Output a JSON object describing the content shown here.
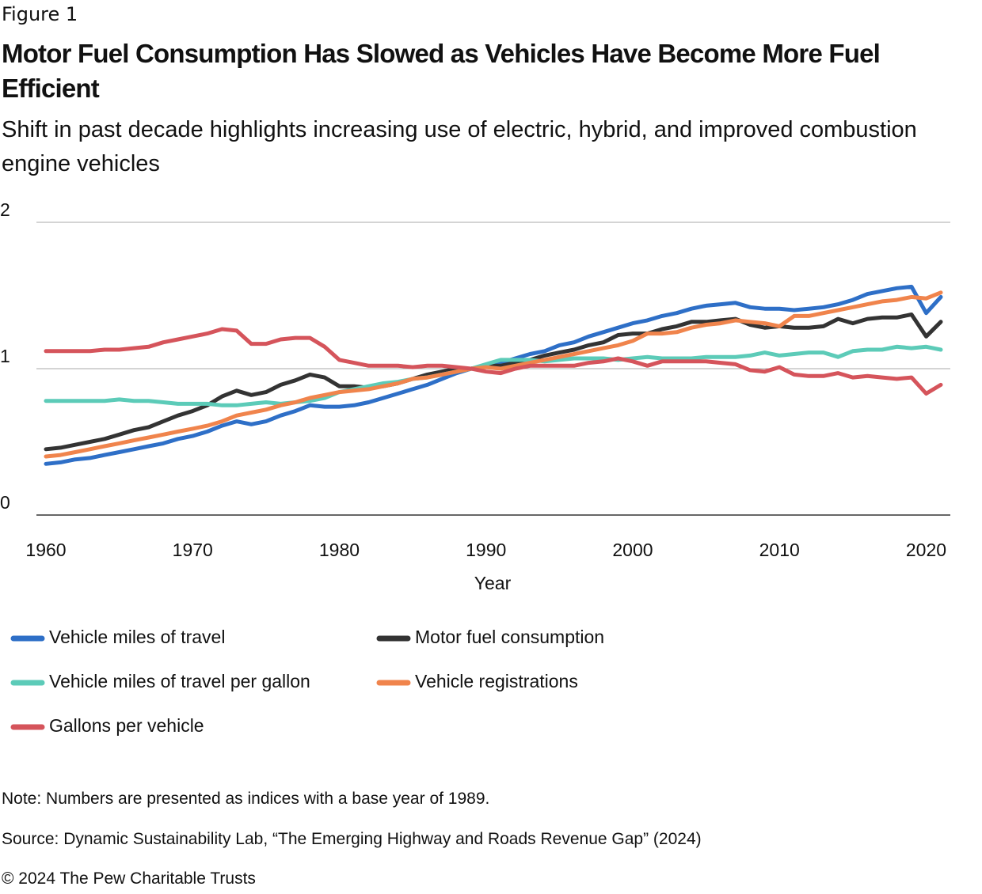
{
  "chart_data": {
    "type": "line",
    "figure_label": "Figure 1",
    "title": "Motor Fuel Consumption Has Slowed as Vehicles Have Become More Fuel Efficient",
    "subtitle": "Shift in past decade highlights increasing use of electric, hybrid, and improved combustion engine vehicles",
    "x_label": "Year",
    "x": [
      1960,
      1961,
      1962,
      1963,
      1964,
      1965,
      1966,
      1967,
      1968,
      1969,
      1970,
      1971,
      1972,
      1973,
      1974,
      1975,
      1976,
      1977,
      1978,
      1979,
      1980,
      1981,
      1982,
      1983,
      1984,
      1985,
      1986,
      1987,
      1988,
      1989,
      1990,
      1991,
      1992,
      1993,
      1994,
      1995,
      1996,
      1997,
      1998,
      1999,
      2000,
      2001,
      2002,
      2003,
      2004,
      2005,
      2006,
      2007,
      2008,
      2009,
      2010,
      2011,
      2012,
      2013,
      2014,
      2015,
      2016,
      2017,
      2018,
      2019,
      2020,
      2021
    ],
    "xlim": [
      1960,
      2021
    ],
    "xticks": [
      1960,
      1970,
      1980,
      1990,
      2000,
      2010,
      2020
    ],
    "ylim": [
      0,
      2
    ],
    "yticks": [
      0,
      1,
      2
    ],
    "grid": true,
    "series": [
      {
        "name": "Vehicle miles of travel",
        "color": "#2e6fc7",
        "values": [
          0.35,
          0.36,
          0.38,
          0.39,
          0.41,
          0.43,
          0.45,
          0.47,
          0.49,
          0.52,
          0.54,
          0.57,
          0.61,
          0.64,
          0.62,
          0.64,
          0.68,
          0.71,
          0.75,
          0.74,
          0.74,
          0.75,
          0.77,
          0.8,
          0.83,
          0.86,
          0.89,
          0.93,
          0.97,
          1.0,
          1.02,
          1.04,
          1.07,
          1.1,
          1.12,
          1.16,
          1.18,
          1.22,
          1.25,
          1.28,
          1.31,
          1.33,
          1.36,
          1.38,
          1.41,
          1.43,
          1.44,
          1.45,
          1.42,
          1.41,
          1.41,
          1.4,
          1.41,
          1.42,
          1.44,
          1.47,
          1.51,
          1.53,
          1.55,
          1.56,
          1.38,
          1.49
        ]
      },
      {
        "name": "Motor fuel consumption",
        "color": "#333333",
        "values": [
          0.45,
          0.46,
          0.48,
          0.5,
          0.52,
          0.55,
          0.58,
          0.6,
          0.64,
          0.68,
          0.71,
          0.75,
          0.81,
          0.85,
          0.82,
          0.84,
          0.89,
          0.92,
          0.96,
          0.94,
          0.88,
          0.88,
          0.87,
          0.88,
          0.9,
          0.93,
          0.96,
          0.98,
          1.0,
          1.0,
          1.02,
          1.02,
          1.04,
          1.06,
          1.09,
          1.11,
          1.13,
          1.16,
          1.18,
          1.23,
          1.24,
          1.24,
          1.27,
          1.29,
          1.32,
          1.32,
          1.33,
          1.34,
          1.3,
          1.28,
          1.29,
          1.28,
          1.28,
          1.29,
          1.34,
          1.31,
          1.34,
          1.35,
          1.35,
          1.37,
          1.22,
          1.32
        ]
      },
      {
        "name": "Vehicle miles of travel per gallon",
        "color": "#5ccbb8",
        "values": [
          0.78,
          0.78,
          0.78,
          0.78,
          0.78,
          0.79,
          0.78,
          0.78,
          0.77,
          0.76,
          0.76,
          0.76,
          0.75,
          0.75,
          0.76,
          0.77,
          0.76,
          0.77,
          0.78,
          0.8,
          0.84,
          0.86,
          0.88,
          0.9,
          0.91,
          0.93,
          0.94,
          0.96,
          0.98,
          1.0,
          1.03,
          1.06,
          1.06,
          1.06,
          1.05,
          1.06,
          1.07,
          1.07,
          1.07,
          1.06,
          1.07,
          1.08,
          1.07,
          1.07,
          1.07,
          1.08,
          1.08,
          1.08,
          1.09,
          1.11,
          1.09,
          1.1,
          1.11,
          1.11,
          1.08,
          1.12,
          1.13,
          1.13,
          1.15,
          1.14,
          1.15,
          1.13
        ]
      },
      {
        "name": "Vehicle registrations",
        "color": "#f0844c",
        "values": [
          0.4,
          0.41,
          0.43,
          0.45,
          0.47,
          0.49,
          0.51,
          0.53,
          0.55,
          0.57,
          0.59,
          0.61,
          0.64,
          0.68,
          0.7,
          0.72,
          0.75,
          0.77,
          0.8,
          0.82,
          0.84,
          0.85,
          0.86,
          0.88,
          0.9,
          0.93,
          0.94,
          0.96,
          0.98,
          1.0,
          1.01,
          1.0,
          1.02,
          1.04,
          1.06,
          1.08,
          1.1,
          1.12,
          1.14,
          1.16,
          1.19,
          1.24,
          1.24,
          1.25,
          1.28,
          1.3,
          1.31,
          1.33,
          1.32,
          1.31,
          1.29,
          1.36,
          1.36,
          1.38,
          1.4,
          1.42,
          1.44,
          1.46,
          1.47,
          1.49,
          1.48,
          1.52
        ]
      },
      {
        "name": "Gallons per vehicle",
        "color": "#d5545b",
        "values": [
          1.12,
          1.12,
          1.12,
          1.12,
          1.13,
          1.13,
          1.14,
          1.15,
          1.18,
          1.2,
          1.22,
          1.24,
          1.27,
          1.26,
          1.17,
          1.17,
          1.2,
          1.21,
          1.21,
          1.15,
          1.06,
          1.04,
          1.02,
          1.02,
          1.02,
          1.01,
          1.02,
          1.02,
          1.01,
          1.0,
          0.98,
          0.97,
          1.0,
          1.02,
          1.02,
          1.02,
          1.02,
          1.04,
          1.05,
          1.07,
          1.05,
          1.02,
          1.05,
          1.05,
          1.05,
          1.05,
          1.04,
          1.03,
          0.99,
          0.98,
          1.01,
          0.96,
          0.95,
          0.95,
          0.97,
          0.94,
          0.95,
          0.94,
          0.93,
          0.94,
          0.83,
          0.89
        ]
      }
    ],
    "note": "Note: Numbers are presented as indices with a base year of 1989.",
    "source": "Source: Dynamic Sustainability Lab, “The Emerging Highway and Roads Revenue Gap” (2024)",
    "copyright": "© 2024 The Pew Charitable Trusts"
  }
}
